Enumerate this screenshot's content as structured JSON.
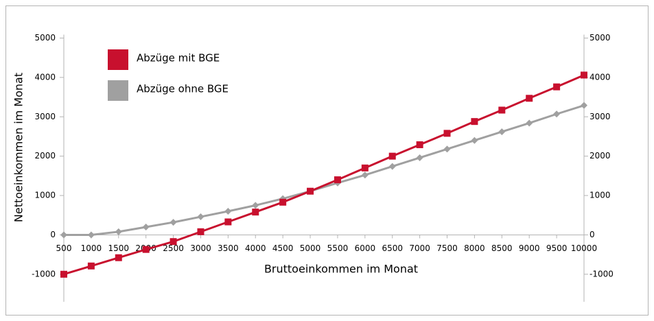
{
  "chart_data": {
    "type": "line",
    "x_label": "Bruttoeinkommen im Monat",
    "y_label": "Nettoeinkommen im Monat",
    "categories": [
      "500",
      "1000",
      "1500",
      "2000",
      "2500",
      "3000",
      "3500",
      "4000",
      "4500",
      "5000",
      "5500",
      "6000",
      "6500",
      "7000",
      "7500",
      "8000",
      "8500",
      "9000",
      "9500",
      "10000"
    ],
    "series": [
      {
        "name": "Abzüge mit BGE",
        "color": "#c8102e",
        "marker": "square",
        "values": [
          -1000,
          -790,
          -580,
          -370,
          -170,
          80,
          330,
          580,
          830,
          1110,
          1400,
          1700,
          2000,
          2290,
          2580,
          2880,
          3170,
          3470,
          3760,
          4060
        ]
      },
      {
        "name": "Abzüge ohne BGE",
        "color": "#a0a0a0",
        "marker": "diamond",
        "values": [
          0,
          0,
          80,
          200,
          320,
          460,
          600,
          750,
          920,
          1110,
          1320,
          1520,
          1740,
          1960,
          2180,
          2400,
          2620,
          2840,
          3070,
          3290
        ]
      }
    ],
    "ylim": [
      -1700,
      5000
    ],
    "yticks": [
      -1000,
      0,
      1000,
      2000,
      3000,
      4000,
      5000
    ],
    "y2lim": [
      -1700,
      5000
    ],
    "y2ticks": [
      -1000,
      0,
      1000,
      2000,
      3000,
      4000,
      5000
    ],
    "grid": false,
    "legend": "top-left"
  }
}
